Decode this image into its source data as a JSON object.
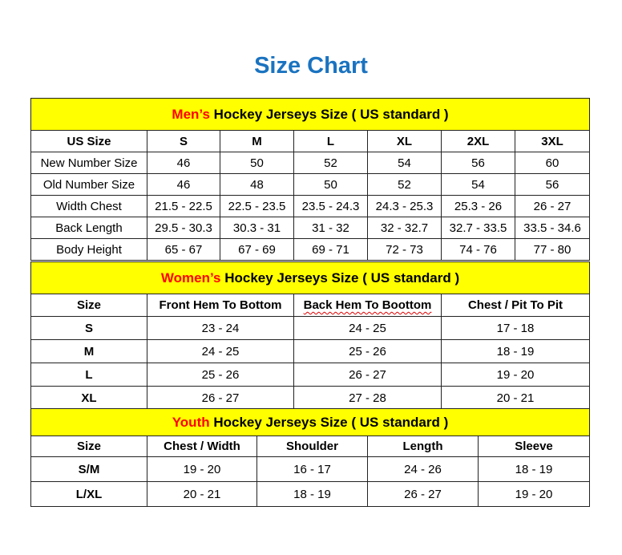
{
  "title": "Size Chart",
  "colors": {
    "title": "#1a73c0",
    "header_bg": "#ffff00",
    "header_accent": "#ff0000"
  },
  "mens": {
    "header_accent": "Men’s",
    "header_rest": " Hockey Jerseys Size ( US standard )",
    "columns": [
      "US Size",
      "S",
      "M",
      "L",
      "XL",
      "2XL",
      "3XL"
    ],
    "rows": [
      [
        "New Number Size",
        "46",
        "50",
        "52",
        "54",
        "56",
        "60"
      ],
      [
        "Old Number Size",
        "46",
        "48",
        "50",
        "52",
        "54",
        "56"
      ],
      [
        "Width Chest",
        "21.5 - 22.5",
        "22.5 - 23.5",
        "23.5 - 24.3",
        "24.3 - 25.3",
        "25.3 - 26",
        "26 - 27"
      ],
      [
        "Back Length",
        "29.5 - 30.3",
        "30.3 - 31",
        "31 - 32",
        "32 - 32.7",
        "32.7 - 33.5",
        "33.5 - 34.6"
      ],
      [
        "Body Height",
        "65 - 67",
        "67 - 69",
        "69 - 71",
        "72 - 73",
        "74 - 76",
        "77 - 80"
      ]
    ]
  },
  "womens": {
    "header_accent": "Women’s",
    "header_rest": " Hockey Jerseys Size ( US standard )",
    "columns": [
      "Size",
      "Front Hem To Bottom",
      "Back Hem To Boottom",
      "Chest / Pit To Pit"
    ],
    "rows": [
      [
        "S",
        "23 - 24",
        "24 - 25",
        "17 - 18"
      ],
      [
        "M",
        "24 - 25",
        "25 - 26",
        "18 - 19"
      ],
      [
        "L",
        "25 - 26",
        "26 - 27",
        "19 - 20"
      ],
      [
        "XL",
        "26 - 27",
        "27 - 28",
        "20 - 21"
      ]
    ]
  },
  "youth": {
    "header_accent": "Youth",
    "header_rest": " Hockey Jerseys Size ( US standard )",
    "columns": [
      "Size",
      "Chest / Width",
      "Shoulder",
      "Length",
      "Sleeve"
    ],
    "rows": [
      [
        "S/M",
        "19 - 20",
        "16 - 17",
        "24 - 26",
        "18 - 19"
      ],
      [
        "L/XL",
        "20 - 21",
        "18 - 19",
        "26 - 27",
        "19 - 20"
      ]
    ]
  }
}
